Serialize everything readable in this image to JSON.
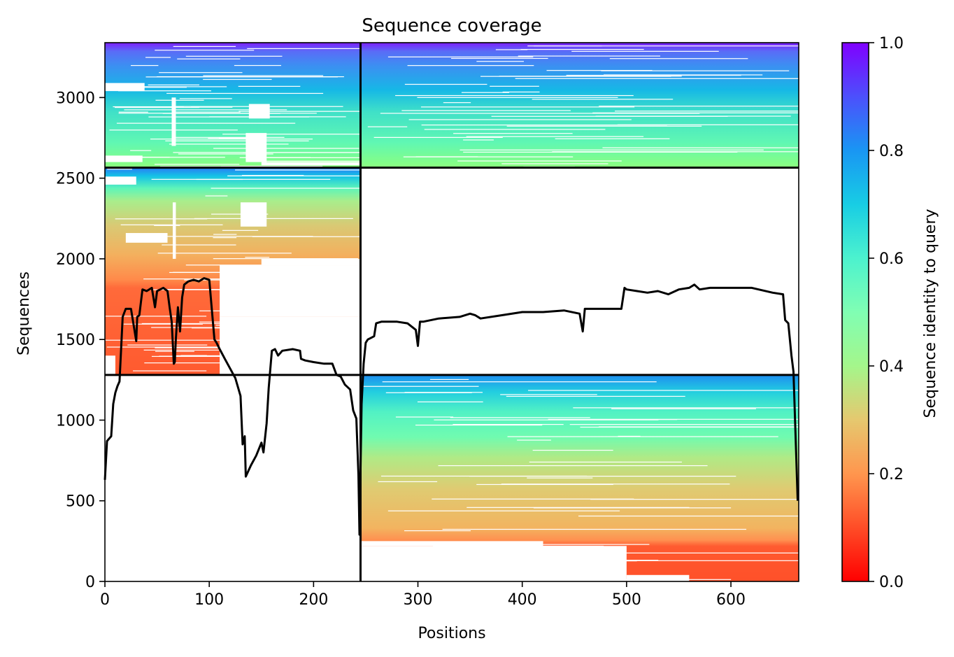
{
  "chart_data": {
    "type": "heatmap",
    "title": "Sequence coverage",
    "xlabel": "Positions",
    "ylabel": "Sequences",
    "colorbar_label": "Sequence identity to query",
    "colormap": "rainbow",
    "xlim": [
      0,
      665
    ],
    "ylim": [
      0,
      3340
    ],
    "x_ticks": [
      "0",
      "100",
      "200",
      "300",
      "400",
      "500",
      "600"
    ],
    "x_tick_values": [
      0,
      100,
      200,
      300,
      400,
      500,
      600
    ],
    "y_ticks": [
      "0",
      "500",
      "1000",
      "1500",
      "2000",
      "2500",
      "3000"
    ],
    "y_tick_values": [
      0,
      500,
      1000,
      1500,
      2000,
      2500,
      3000
    ],
    "colorbar_ticks": [
      "0.0",
      "0.2",
      "0.4",
      "0.6",
      "0.8",
      "1.0"
    ],
    "colorbar_tick_values": [
      0,
      0.2,
      0.4,
      0.6,
      0.8,
      1.0
    ],
    "separators": {
      "vertical_x": 245,
      "horizontal_y": [
        1280,
        2565
      ]
    },
    "blocks": [
      {
        "name": "top-left",
        "x": [
          0,
          245
        ],
        "rows": [
          2565,
          3340
        ],
        "identity": [
          0.45,
          1.0
        ]
      },
      {
        "name": "top-right",
        "x": [
          245,
          665
        ],
        "rows": [
          2565,
          3340
        ],
        "identity": [
          0.45,
          1.0
        ]
      },
      {
        "name": "middle-left",
        "x": [
          0,
          245
        ],
        "rows": [
          1280,
          2565
        ],
        "identity": [
          0.12,
          0.85
        ]
      },
      {
        "name": "bottom-right",
        "x": [
          245,
          665
        ],
        "rows": [
          0,
          1280
        ],
        "identity": [
          0.12,
          0.85
        ]
      }
    ],
    "coverage_line": {
      "x": [
        0,
        2,
        6,
        8,
        10,
        12,
        14,
        17,
        20,
        25,
        30,
        31,
        33,
        36,
        40,
        45,
        48,
        50,
        53,
        56,
        60,
        62,
        64,
        66,
        67,
        68,
        70,
        72,
        74,
        76,
        80,
        85,
        90,
        95,
        100,
        105,
        107,
        110,
        115,
        120,
        125,
        130,
        132,
        134,
        135,
        140,
        145,
        150,
        152,
        155,
        157,
        160,
        163,
        166,
        170,
        180,
        187,
        188,
        192,
        200,
        210,
        218,
        222,
        226,
        230,
        235,
        238,
        241,
        243,
        244,
        245,
        246,
        248,
        250,
        252,
        255,
        258,
        260,
        265,
        270,
        280,
        290,
        298,
        300,
        302,
        305,
        320,
        340,
        350,
        355,
        360,
        380,
        400,
        420,
        440,
        455,
        458,
        460,
        462,
        470,
        480,
        490,
        495,
        498,
        500,
        510,
        520,
        530,
        540,
        550,
        560,
        565,
        570,
        580,
        600,
        620,
        640,
        650,
        652,
        655,
        658,
        660,
        662,
        664
      ],
      "y": [
        630,
        870,
        900,
        1100,
        1170,
        1210,
        1240,
        1640,
        1690,
        1690,
        1490,
        1640,
        1650,
        1810,
        1800,
        1820,
        1700,
        1800,
        1810,
        1820,
        1800,
        1700,
        1610,
        1350,
        1360,
        1500,
        1700,
        1550,
        1760,
        1840,
        1860,
        1870,
        1860,
        1880,
        1870,
        1500,
        1480,
        1440,
        1380,
        1320,
        1260,
        1150,
        850,
        900,
        650,
        720,
        780,
        860,
        800,
        980,
        1200,
        1430,
        1440,
        1400,
        1430,
        1440,
        1430,
        1380,
        1370,
        1360,
        1350,
        1350,
        1280,
        1270,
        1220,
        1190,
        1060,
        1010,
        660,
        290,
        700,
        1100,
        1350,
        1480,
        1500,
        1510,
        1520,
        1600,
        1610,
        1610,
        1610,
        1600,
        1560,
        1460,
        1610,
        1610,
        1630,
        1640,
        1660,
        1650,
        1630,
        1650,
        1670,
        1670,
        1680,
        1660,
        1550,
        1690,
        1690,
        1690,
        1690,
        1690,
        1690,
        1820,
        1810,
        1800,
        1790,
        1800,
        1780,
        1810,
        1820,
        1840,
        1810,
        1820,
        1820,
        1820,
        1790,
        1780,
        1620,
        1600,
        1400,
        1300,
        900,
        500
      ]
    }
  }
}
